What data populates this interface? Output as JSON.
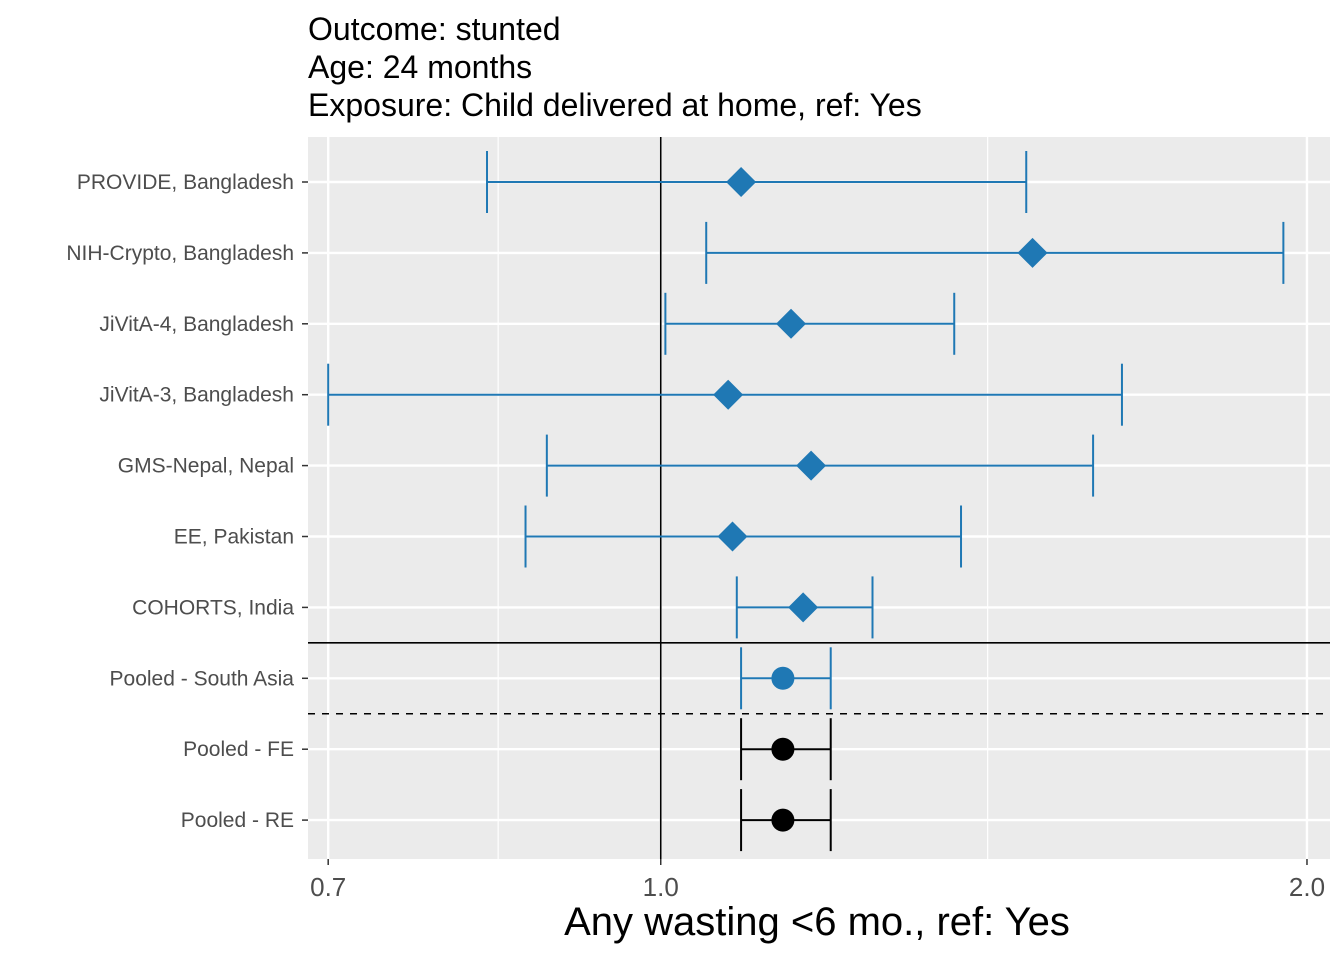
{
  "chart_data": {
    "type": "forest",
    "title_lines": [
      "Outcome: stunted",
      "Age: 24 months",
      "Exposure: Child delivered at home, ref: Yes"
    ],
    "xlabel": "Any wasting  <6 mo., ref: Yes",
    "ylabel": "",
    "x_scale": "log",
    "xlim": [
      0.685,
      2.05
    ],
    "x_ticks": [
      {
        "value": 0.7,
        "label": "0.7"
      },
      {
        "value": 1.0,
        "label": "1.0"
      },
      {
        "value": 2.0,
        "label": "2.0"
      }
    ],
    "x_minor_ticks": [
      0.84,
      1.42
    ],
    "reference_line": 1.0,
    "grid": true,
    "colors": {
      "study": "#1F78B4",
      "pooled": "#000000",
      "panel": "#EBEBEB",
      "grid": "#FFFFFF"
    },
    "rows": [
      {
        "label": "PROVIDE, Bangladesh",
        "est": 1.09,
        "lower": 0.83,
        "upper": 1.48,
        "shape": "diamond",
        "color": "#1F78B4"
      },
      {
        "label": "NIH-Crypto, Bangladesh",
        "est": 1.49,
        "lower": 1.05,
        "upper": 1.95,
        "shape": "diamond",
        "color": "#1F78B4"
      },
      {
        "label": "JiVitA-4, Bangladesh",
        "est": 1.15,
        "lower": 1.005,
        "upper": 1.37,
        "shape": "diamond",
        "color": "#1F78B4"
      },
      {
        "label": "JiVitA-3, Bangladesh",
        "est": 1.075,
        "lower": 0.7,
        "upper": 1.64,
        "shape": "diamond",
        "color": "#1F78B4"
      },
      {
        "label": "GMS-Nepal, Nepal",
        "est": 1.175,
        "lower": 0.885,
        "upper": 1.59,
        "shape": "diamond",
        "color": "#1F78B4"
      },
      {
        "label": "EE, Pakistan",
        "est": 1.08,
        "lower": 0.865,
        "upper": 1.38,
        "shape": "diamond",
        "color": "#1F78B4"
      },
      {
        "label": "COHORTS, India",
        "est": 1.165,
        "lower": 1.085,
        "upper": 1.255,
        "shape": "diamond",
        "color": "#1F78B4"
      },
      {
        "label": "Pooled - South Asia",
        "est": 1.14,
        "lower": 1.09,
        "upper": 1.2,
        "shape": "circle",
        "color": "#1F78B4"
      },
      {
        "label": "Pooled - FE",
        "est": 1.14,
        "lower": 1.09,
        "upper": 1.2,
        "shape": "circle",
        "color": "#000000"
      },
      {
        "label": "Pooled - RE",
        "est": 1.14,
        "lower": 1.09,
        "upper": 1.2,
        "shape": "circle",
        "color": "#000000"
      }
    ]
  }
}
